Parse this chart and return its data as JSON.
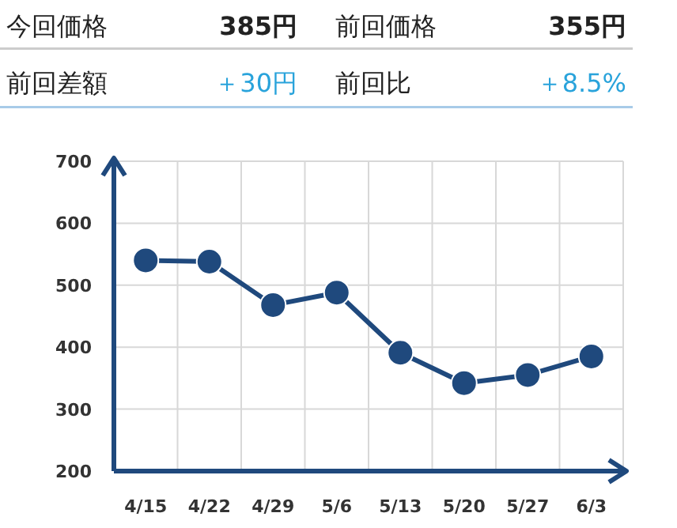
{
  "chart_data": {
    "type": "line",
    "annotations": [
      "今回価格",
      "385円",
      "前回価格",
      "355円",
      "前回差額",
      "＋30円",
      "前回比",
      "＋8.5%"
    ],
    "categories": [
      "4/15",
      "4/22",
      "4/29",
      "5/6",
      "5/13",
      "5/20",
      "5/27",
      "6/3"
    ],
    "series": [
      {
        "color": "#1f497d",
        "values": [
          540,
          538,
          468,
          488,
          391,
          342,
          355,
          385
        ]
      }
    ],
    "ylim": [
      200,
      700
    ],
    "yticks": [
      200,
      300,
      400,
      500,
      600,
      700
    ],
    "grid": true,
    "marker": "circle",
    "line_style": "solid"
  }
}
